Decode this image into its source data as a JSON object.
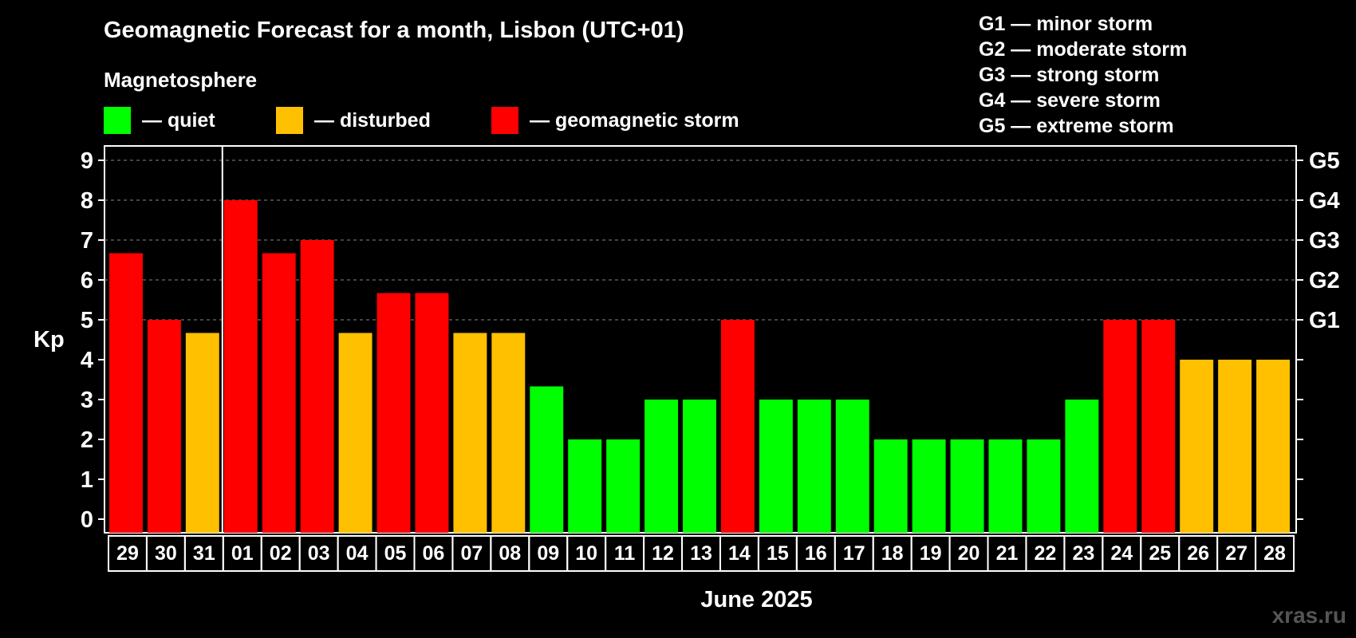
{
  "title": "Geomagnetic Forecast for a month, Lisbon (UTC+01)",
  "subtitle": "Magnetosphere",
  "legend": [
    {
      "label": "— quiet",
      "color": "#00ff00"
    },
    {
      "label": "— disturbed",
      "color": "#ffc000"
    },
    {
      "label": "— geomagnetic storm",
      "color": "#ff0000"
    }
  ],
  "g_legend": [
    "G1 — minor storm",
    "G2 — moderate storm",
    "G3 — strong storm",
    "G4 — severe storm",
    "G5 — extreme storm"
  ],
  "watermark": "xras.ru",
  "chart_data": {
    "type": "bar",
    "title": "Geomagnetic Forecast for a month, Lisbon (UTC+01)",
    "xlabel": "June 2025",
    "ylabel": "Kp",
    "ylim": [
      0,
      9
    ],
    "yticks": [
      0,
      1,
      2,
      3,
      4,
      5,
      6,
      7,
      8,
      9
    ],
    "right_ticks": [
      {
        "value": 5,
        "label": "G1"
      },
      {
        "value": 6,
        "label": "G2"
      },
      {
        "value": 7,
        "label": "G3"
      },
      {
        "value": 8,
        "label": "G4"
      },
      {
        "value": 9,
        "label": "G5"
      }
    ],
    "grid": "dashed, from Kp 5 upward",
    "categories": [
      "29",
      "30",
      "31",
      "01",
      "02",
      "03",
      "04",
      "05",
      "06",
      "07",
      "08",
      "09",
      "10",
      "11",
      "12",
      "13",
      "14",
      "15",
      "16",
      "17",
      "18",
      "19",
      "20",
      "21",
      "22",
      "23",
      "24",
      "25",
      "26",
      "27",
      "28"
    ],
    "values": [
      6.67,
      5,
      4.67,
      8,
      6.67,
      7,
      4.67,
      5.67,
      5.67,
      4.67,
      4.67,
      3.33,
      2,
      2,
      3,
      3,
      5,
      3,
      3,
      3,
      2,
      2,
      2,
      2,
      2,
      3,
      5,
      5,
      4,
      4,
      4
    ],
    "levels": [
      "storm",
      "storm",
      "disturbed",
      "storm",
      "storm",
      "storm",
      "disturbed",
      "storm",
      "storm",
      "disturbed",
      "disturbed",
      "quiet",
      "quiet",
      "quiet",
      "quiet",
      "quiet",
      "storm",
      "quiet",
      "quiet",
      "quiet",
      "quiet",
      "quiet",
      "quiet",
      "quiet",
      "quiet",
      "quiet",
      "storm",
      "storm",
      "disturbed",
      "disturbed",
      "disturbed"
    ],
    "level_colors": {
      "quiet": "#00ff00",
      "disturbed": "#ffc000",
      "storm": "#ff0000"
    },
    "month_divider_after": "31"
  }
}
